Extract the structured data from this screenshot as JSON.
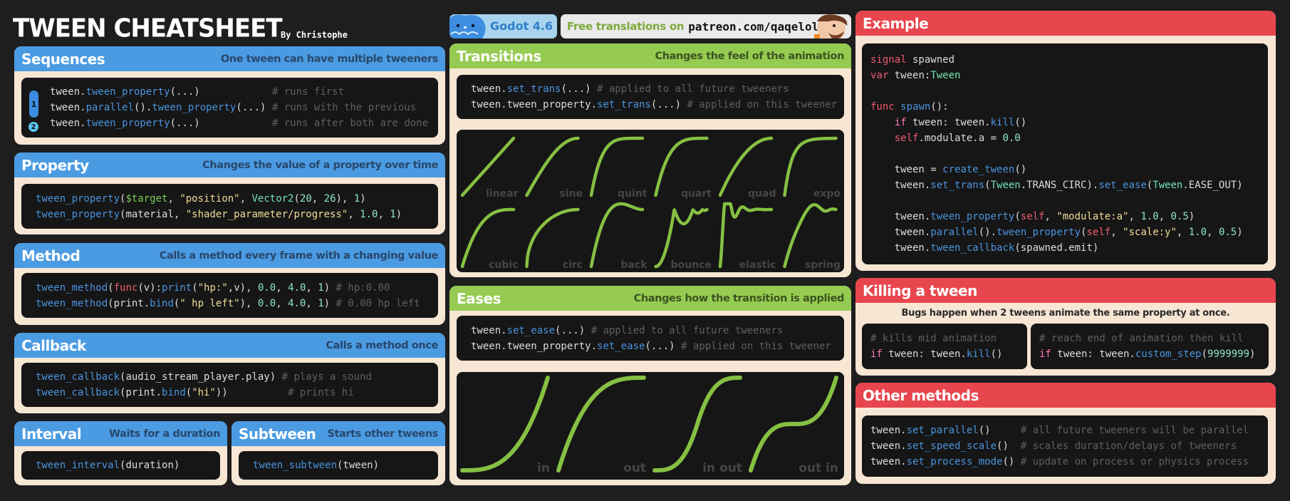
{
  "header": {
    "title": "TWEEN CHEATSHEET",
    "byline": "By Christophe"
  },
  "badges": {
    "godot": "Godot 4.6",
    "translations_text": "Free translations on",
    "translations_link": "patreon.com/qaqelol"
  },
  "colors": {
    "blue": "#4b9be3",
    "green": "#96cb51",
    "red": "#e8464e",
    "card": "#f8e6d4",
    "code_bg": "#161616",
    "curve": "#86c043"
  },
  "sequences": {
    "title": "Sequences",
    "subtitle": "One tween can have multiple tweeners",
    "step_badges": [
      "1",
      "2"
    ],
    "code": [
      [
        [
          "p",
          "tween."
        ],
        [
          "f",
          "tween_property"
        ],
        [
          "p",
          "(...)            "
        ],
        [
          "c",
          "# runs first"
        ]
      ],
      [
        [
          "p",
          "tween."
        ],
        [
          "f",
          "parallel"
        ],
        [
          "p",
          "()."
        ],
        [
          "f",
          "tween_property"
        ],
        [
          "p",
          "(...) "
        ],
        [
          "c",
          "# runs with the previous"
        ]
      ],
      [
        [
          "p",
          "tween."
        ],
        [
          "f",
          "tween_property"
        ],
        [
          "p",
          "(...)            "
        ],
        [
          "c",
          "# runs after both are done"
        ]
      ]
    ]
  },
  "property": {
    "title": "Property",
    "subtitle": "Changes the value of a property over time",
    "code": [
      [
        [
          "f",
          "tween_property"
        ],
        [
          "p",
          "("
        ],
        [
          "g",
          "$target"
        ],
        [
          "p",
          ", "
        ],
        [
          "s",
          "\"position\""
        ],
        [
          "p",
          ", "
        ],
        [
          "t",
          "Vector2"
        ],
        [
          "p",
          "("
        ],
        [
          "n",
          "20"
        ],
        [
          "p",
          ", "
        ],
        [
          "n",
          "26"
        ],
        [
          "p",
          "), "
        ],
        [
          "n",
          "1"
        ],
        [
          "p",
          ")"
        ]
      ],
      [
        [
          "f",
          "tween_property"
        ],
        [
          "p",
          "(material, "
        ],
        [
          "s",
          "\"shader_parameter/progress\""
        ],
        [
          "p",
          ", "
        ],
        [
          "n",
          "1.0"
        ],
        [
          "p",
          ", "
        ],
        [
          "n",
          "1"
        ],
        [
          "p",
          ")"
        ]
      ]
    ]
  },
  "method": {
    "title": "Method",
    "subtitle": "Calls a method every frame with a changing value",
    "code": [
      [
        [
          "f",
          "tween_method"
        ],
        [
          "p",
          "("
        ],
        [
          "k",
          "func"
        ],
        [
          "p",
          "(v):"
        ],
        [
          "f",
          "print"
        ],
        [
          "p",
          "("
        ],
        [
          "s",
          "\"hp:\""
        ],
        [
          "p",
          ",v), "
        ],
        [
          "n",
          "0.0"
        ],
        [
          "p",
          ", "
        ],
        [
          "n",
          "4.0"
        ],
        [
          "p",
          ", "
        ],
        [
          "n",
          "1"
        ],
        [
          "p",
          ") "
        ],
        [
          "c",
          "# hp:0.00"
        ]
      ],
      [
        [
          "f",
          "tween_method"
        ],
        [
          "p",
          "(print."
        ],
        [
          "f",
          "bind"
        ],
        [
          "p",
          "("
        ],
        [
          "s",
          "\" hp left\""
        ],
        [
          "p",
          "), "
        ],
        [
          "n",
          "0.0"
        ],
        [
          "p",
          ", "
        ],
        [
          "n",
          "4.0"
        ],
        [
          "p",
          ", "
        ],
        [
          "n",
          "1"
        ],
        [
          "p",
          ") "
        ],
        [
          "c",
          "# 0.00 hp left"
        ]
      ]
    ]
  },
  "callback": {
    "title": "Callback",
    "subtitle": "Calls a method once",
    "code": [
      [
        [
          "f",
          "tween_callback"
        ],
        [
          "p",
          "(audio_stream_player.play) "
        ],
        [
          "c",
          "# plays a sound"
        ]
      ],
      [
        [
          "f",
          "tween_callback"
        ],
        [
          "p",
          "(print."
        ],
        [
          "f",
          "bind"
        ],
        [
          "p",
          "("
        ],
        [
          "s",
          "\"hi\""
        ],
        [
          "p",
          "))          "
        ],
        [
          "c",
          "# prints hi"
        ]
      ]
    ]
  },
  "interval": {
    "title": "Interval",
    "subtitle": "Waits for a duration",
    "code": [
      [
        [
          "f",
          "tween_interval"
        ],
        [
          "p",
          "(duration)"
        ]
      ]
    ]
  },
  "subtween": {
    "title": "Subtween",
    "subtitle": "Starts other tweens",
    "code": [
      [
        [
          "f",
          "tween_subtween"
        ],
        [
          "p",
          "(tween)"
        ]
      ]
    ]
  },
  "transitions": {
    "title": "Transitions",
    "subtitle": "Changes the feel of the animation",
    "code": [
      [
        [
          "p",
          "tween."
        ],
        [
          "f",
          "set_trans"
        ],
        [
          "p",
          "(...) "
        ],
        [
          "c",
          "# applied to all future tweeners"
        ]
      ],
      [
        [
          "p",
          "tween.tween_property."
        ],
        [
          "f",
          "set_trans"
        ],
        [
          "p",
          "(...) "
        ],
        [
          "c",
          "# applied on this tweener"
        ]
      ]
    ],
    "curves": [
      "linear",
      "sine",
      "quint",
      "quart",
      "quad",
      "expo",
      "cubic",
      "circ",
      "back",
      "bounce",
      "elastic",
      "spring"
    ]
  },
  "eases": {
    "title": "Eases",
    "subtitle": "Changes how the transition is applied",
    "code": [
      [
        [
          "p",
          "tween."
        ],
        [
          "f",
          "set_ease"
        ],
        [
          "p",
          "(...) "
        ],
        [
          "c",
          "# applied to all future tweeners"
        ]
      ],
      [
        [
          "p",
          "tween.tween_property."
        ],
        [
          "f",
          "set_ease"
        ],
        [
          "p",
          "(...) "
        ],
        [
          "c",
          "# applied on this tweener"
        ]
      ]
    ],
    "curves": [
      "in",
      "out",
      "in out",
      "out in"
    ]
  },
  "example": {
    "title": "Example",
    "code": [
      [
        [
          "k",
          "signal"
        ],
        [
          "p",
          " spawned"
        ]
      ],
      [
        [
          "k",
          "var"
        ],
        [
          "p",
          " tween:"
        ],
        [
          "t",
          "Tween"
        ]
      ],
      [],
      [
        [
          "k",
          "func"
        ],
        [
          "p",
          " "
        ],
        [
          "f",
          "spawn"
        ],
        [
          "p",
          "():"
        ]
      ],
      [
        [
          "p",
          "    "
        ],
        [
          "i",
          "if"
        ],
        [
          "p",
          " tween: tween."
        ],
        [
          "f",
          "kill"
        ],
        [
          "p",
          "()"
        ]
      ],
      [
        [
          "p",
          "    "
        ],
        [
          "k",
          "self"
        ],
        [
          "p",
          ".modulate.a = "
        ],
        [
          "n",
          "0.0"
        ]
      ],
      [],
      [
        [
          "p",
          "    tween = "
        ],
        [
          "f",
          "create_tween"
        ],
        [
          "p",
          "()"
        ]
      ],
      [
        [
          "p",
          "    tween."
        ],
        [
          "f",
          "set_trans"
        ],
        [
          "p",
          "("
        ],
        [
          "t",
          "Tween"
        ],
        [
          "p",
          ".TRANS_CIRC)."
        ],
        [
          "f",
          "set_ease"
        ],
        [
          "p",
          "("
        ],
        [
          "t",
          "Tween"
        ],
        [
          "p",
          ".EASE_OUT)"
        ]
      ],
      [],
      [
        [
          "p",
          "    tween."
        ],
        [
          "f",
          "tween_property"
        ],
        [
          "p",
          "("
        ],
        [
          "k",
          "self"
        ],
        [
          "p",
          ", "
        ],
        [
          "s",
          "\"modulate:a\""
        ],
        [
          "p",
          ", "
        ],
        [
          "n",
          "1.0"
        ],
        [
          "p",
          ", "
        ],
        [
          "n",
          "0.5"
        ],
        [
          "p",
          ")"
        ]
      ],
      [
        [
          "p",
          "    tween."
        ],
        [
          "f",
          "parallel"
        ],
        [
          "p",
          "()."
        ],
        [
          "f",
          "tween_property"
        ],
        [
          "p",
          "("
        ],
        [
          "k",
          "self"
        ],
        [
          "p",
          ", "
        ],
        [
          "s",
          "\"scale:y\""
        ],
        [
          "p",
          ", "
        ],
        [
          "n",
          "1.0"
        ],
        [
          "p",
          ", "
        ],
        [
          "n",
          "0.5"
        ],
        [
          "p",
          ")"
        ]
      ],
      [
        [
          "p",
          "    tween."
        ],
        [
          "f",
          "tween_callback"
        ],
        [
          "p",
          "(spawned.emit)"
        ]
      ]
    ]
  },
  "killing": {
    "title": "Killing a tween",
    "note": "Bugs happen when 2 tweens animate the same property at once.",
    "code_left": [
      [
        [
          "c",
          "# kills mid animation"
        ]
      ],
      [
        [
          "i",
          "if"
        ],
        [
          "p",
          " tween: tween."
        ],
        [
          "f",
          "kill"
        ],
        [
          "p",
          "()"
        ]
      ]
    ],
    "code_right": [
      [
        [
          "c",
          "# reach end of animation then kill"
        ]
      ],
      [
        [
          "i",
          "if"
        ],
        [
          "p",
          " tween: tween."
        ],
        [
          "f",
          "custom_step"
        ],
        [
          "p",
          "("
        ],
        [
          "n",
          "9999999"
        ],
        [
          "p",
          ")"
        ]
      ]
    ]
  },
  "other": {
    "title": "Other methods",
    "code": [
      [
        [
          "p",
          "tween."
        ],
        [
          "f",
          "set_parallel"
        ],
        [
          "p",
          "()     "
        ],
        [
          "c",
          "# all future tweeners will be parallel"
        ]
      ],
      [
        [
          "p",
          "tween."
        ],
        [
          "f",
          "set_speed_scale"
        ],
        [
          "p",
          "()  "
        ],
        [
          "c",
          "# scales duration/delays of tweeners"
        ]
      ],
      [
        [
          "p",
          "tween."
        ],
        [
          "f",
          "set_process_mode"
        ],
        [
          "p",
          "() "
        ],
        [
          "c",
          "# update on process or physics process"
        ]
      ]
    ]
  }
}
